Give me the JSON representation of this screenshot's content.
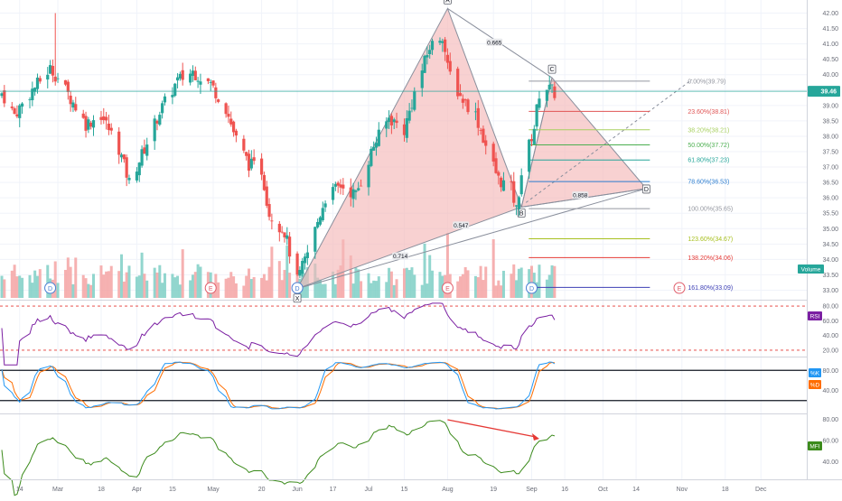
{
  "chart_data": {
    "type": "candlestick",
    "x_axis": {
      "labels": [
        {
          "text": "14",
          "date": "2019-02-14"
        },
        {
          "text": "Mar",
          "date": "2019-03-01"
        },
        {
          "text": "18",
          "date": "2019-03-18"
        },
        {
          "text": "Apr",
          "date": "2019-04-01"
        },
        {
          "text": "15",
          "date": "2019-04-15"
        },
        {
          "text": "May",
          "date": "2019-05-01"
        },
        {
          "text": "20",
          "date": "2019-05-20"
        },
        {
          "text": "Jun",
          "date": "2019-06-03"
        },
        {
          "text": "17",
          "date": "2019-06-17"
        },
        {
          "text": "Jul",
          "date": "2019-07-01"
        },
        {
          "text": "15",
          "date": "2019-07-15"
        },
        {
          "text": "Aug",
          "date": "2019-08-01"
        },
        {
          "text": "19",
          "date": "2019-08-19"
        },
        {
          "text": "Sep",
          "date": "2019-09-03"
        },
        {
          "text": "16",
          "date": "2019-09-16"
        },
        {
          "text": "Oct",
          "date": "2019-10-01"
        },
        {
          "text": "14",
          "date": "2019-10-14"
        },
        {
          "text": "Nov",
          "date": "2019-11-01"
        },
        {
          "text": "18",
          "date": "2019-11-18"
        },
        {
          "text": "Dec",
          "date": "2019-12-02"
        }
      ]
    },
    "price_pane": {
      "y_ticks": [
        "42.00",
        "41.50",
        "41.00",
        "40.50",
        "40.00",
        "39.50",
        "39.00",
        "38.50",
        "38.00",
        "37.50",
        "37.00",
        "36.50",
        "36.00",
        "35.50",
        "35.00",
        "34.50",
        "34.00",
        "33.50",
        "33.00"
      ],
      "ylim": [
        32.75,
        42.25
      ],
      "last_price": "39.46",
      "last_price_value": 39.46,
      "anchor_points": [
        {
          "date": "2019-02-07",
          "close": 39.4
        },
        {
          "date": "2019-02-12",
          "close": 38.7
        },
        {
          "date": "2019-02-19",
          "close": 39.5
        },
        {
          "date": "2019-02-26",
          "close": 40.2
        },
        {
          "date": "2019-03-01",
          "close": 39.9
        },
        {
          "date": "2019-03-07",
          "close": 39.1
        },
        {
          "date": "2019-03-12",
          "close": 38.4
        },
        {
          "date": "2019-03-18",
          "close": 38.7
        },
        {
          "date": "2019-03-25",
          "close": 37.6
        },
        {
          "date": "2019-03-29",
          "close": 36.5
        },
        {
          "date": "2019-04-03",
          "close": 37.4
        },
        {
          "date": "2019-04-10",
          "close": 38.8
        },
        {
          "date": "2019-04-17",
          "close": 39.8
        },
        {
          "date": "2019-04-23",
          "close": 40.1
        },
        {
          "date": "2019-04-30",
          "close": 39.7
        },
        {
          "date": "2019-05-06",
          "close": 38.9
        },
        {
          "date": "2019-05-10",
          "close": 37.9
        },
        {
          "date": "2019-05-15",
          "close": 37.1
        },
        {
          "date": "2019-05-20",
          "close": 36.9
        },
        {
          "date": "2019-05-23",
          "close": 35.5
        },
        {
          "date": "2019-05-29",
          "close": 34.9
        },
        {
          "date": "2019-06-03",
          "close": 33.3
        },
        {
          "date": "2019-06-07",
          "close": 34.2
        },
        {
          "date": "2019-06-14",
          "close": 36.0
        },
        {
          "date": "2019-06-20",
          "close": 36.4
        },
        {
          "date": "2019-06-26",
          "close": 36.1
        },
        {
          "date": "2019-07-03",
          "close": 37.7
        },
        {
          "date": "2019-07-09",
          "close": 38.6
        },
        {
          "date": "2019-07-15",
          "close": 38.2
        },
        {
          "date": "2019-07-19",
          "close": 39.4
        },
        {
          "date": "2019-07-25",
          "close": 40.9
        },
        {
          "date": "2019-07-30",
          "close": 41.3
        },
        {
          "date": "2019-08-01",
          "close": 40.2
        },
        {
          "date": "2019-08-06",
          "close": 39.3
        },
        {
          "date": "2019-08-12",
          "close": 38.7
        },
        {
          "date": "2019-08-16",
          "close": 37.7
        },
        {
          "date": "2019-08-21",
          "close": 36.6
        },
        {
          "date": "2019-08-26",
          "close": 36.3
        },
        {
          "date": "2019-08-28",
          "close": 35.6
        },
        {
          "date": "2019-08-30",
          "close": 36.8
        },
        {
          "date": "2019-09-04",
          "close": 38.3
        },
        {
          "date": "2019-09-06",
          "close": 39.4
        },
        {
          "date": "2019-09-09",
          "close": 39.6
        },
        {
          "date": "2019-09-12",
          "close": 39.4
        }
      ],
      "harmonic": {
        "points": [
          {
            "label": "X",
            "date": "2019-06-03",
            "price": 33.05
          },
          {
            "label": "A",
            "date": "2019-08-01",
            "price": 42.15
          },
          {
            "label": "B",
            "date": "2019-08-30",
            "price": 35.7
          },
          {
            "label": "C",
            "date": "2019-09-11",
            "price": 39.9
          },
          {
            "label": "D",
            "date": "2019-10-18",
            "price": 36.3
          }
        ],
        "ratios": [
          {
            "text": "0.665"
          },
          {
            "text": "0.714"
          },
          {
            "text": "0.547"
          },
          {
            "text": "0.858"
          }
        ],
        "fill_color": "#f4b8b8",
        "line_color": "#8a8f9c"
      },
      "fibonacci": [
        {
          "label": "0.00%(39.79)",
          "value": 39.79,
          "color": "#9598a1"
        },
        {
          "label": "23.60%(38.81)",
          "value": 38.81,
          "color": "#e05555"
        },
        {
          "label": "38.20%(38.21)",
          "value": 38.21,
          "color": "#a8d060"
        },
        {
          "label": "50.00%(37.72)",
          "value": 37.72,
          "color": "#4caf50"
        },
        {
          "label": "61.80%(37.23)",
          "value": 37.23,
          "color": "#26a69a"
        },
        {
          "label": "78.60%(36.53)",
          "value": 36.53,
          "color": "#2f7fd0"
        },
        {
          "label": "100.00%(35.65)",
          "value": 35.65,
          "color": "#9598a1"
        },
        {
          "label": "123.60%(34.67)",
          "value": 34.67,
          "color": "#a8c020"
        },
        {
          "label": "138.20%(34.06)",
          "value": 34.06,
          "color": "#e53935"
        },
        {
          "label": "161.80%(33.09)",
          "value": 33.09,
          "color": "#3d3fb5"
        }
      ],
      "volume_label": "Volume",
      "event_markers": [
        {
          "text": "D",
          "date": "2019-02-26",
          "color": "#4a7fd4"
        },
        {
          "text": "E",
          "date": "2019-04-30",
          "color": "#e05d6a"
        },
        {
          "text": "D",
          "date": "2019-06-03",
          "color": "#4a7fd4"
        },
        {
          "text": "E",
          "date": "2019-08-01",
          "color": "#e05d6a"
        },
        {
          "text": "D",
          "date": "2019-09-03",
          "color": "#4a7fd4"
        },
        {
          "text": "E",
          "date": "2019-10-31",
          "color": "#e05d6a"
        }
      ]
    },
    "rsi_pane": {
      "label": "RSI",
      "color": "#7b1fa2",
      "y_ticks": [
        "80.00",
        "60.00",
        "40.00",
        "20.00"
      ],
      "ylim": [
        15,
        85
      ],
      "bands": [
        80,
        20
      ]
    },
    "stoch_pane": {
      "k_label": "%K",
      "d_label": "%D",
      "k_color": "#2196f3",
      "d_color": "#ff6d00",
      "y_ticks": [
        "80.00",
        "40.00"
      ],
      "ylim": [
        -2,
        102
      ],
      "bands": [
        80,
        20
      ]
    },
    "mfi_pane": {
      "label": "MFI",
      "color": "#3c8b1c",
      "y_ticks": [
        "80.00",
        "60.00",
        "40.00"
      ],
      "ylim": [
        26,
        84
      ],
      "annotation_arrow_color": "#e53935"
    },
    "colors": {
      "up": "#26a69a",
      "down": "#ef5350",
      "volume_up": "#7fcfc6",
      "volume_down": "#f5a3a3",
      "last_price_line": "#26a69a"
    }
  }
}
